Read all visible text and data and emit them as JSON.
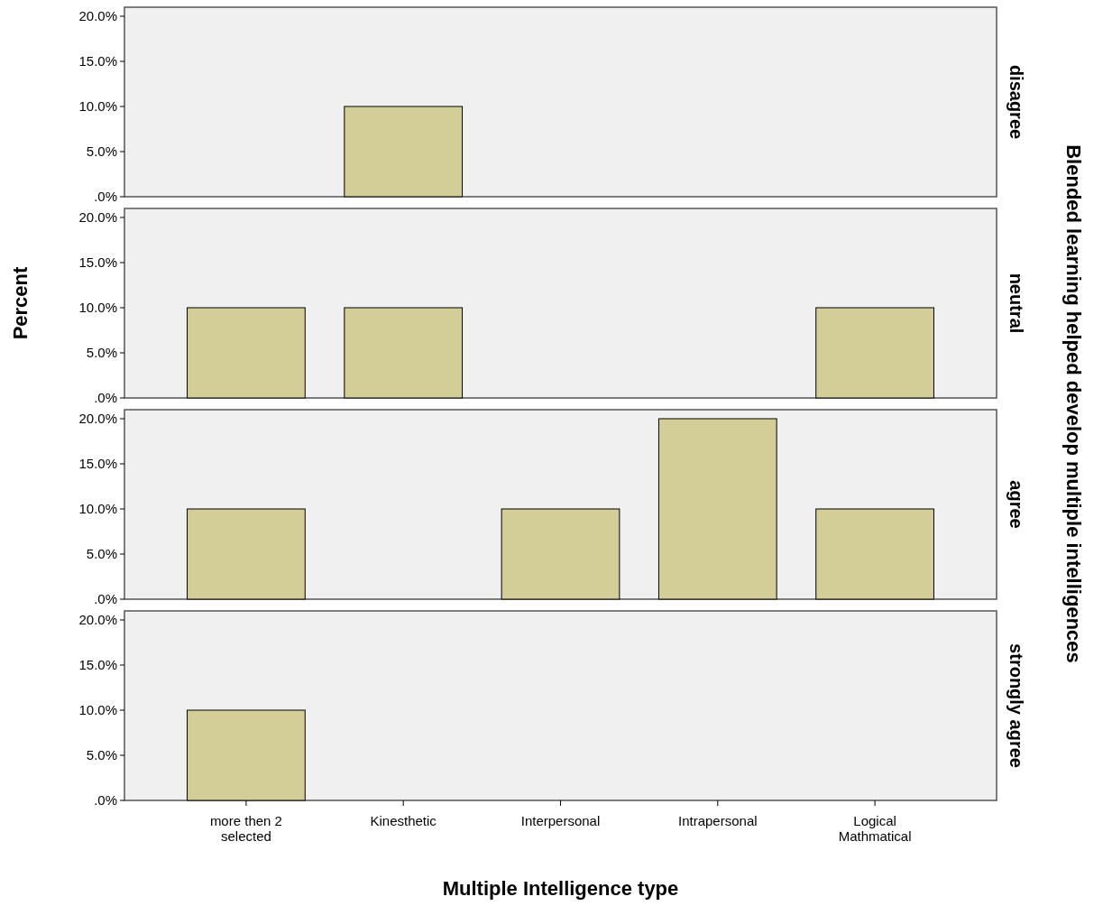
{
  "chart_data": [
    {
      "type": "bar",
      "categories": [
        "more then 2 selected",
        "Kinesthetic",
        "Interpersonal",
        "Intrapersonal",
        "Logical Mathmatical"
      ],
      "values": [
        0,
        10,
        0,
        0,
        0
      ],
      "color": "#d3ce97",
      "ylim": [
        0,
        21
      ],
      "yticks": [
        {
          "value": 0,
          "label": ".0%"
        },
        {
          "value": 5,
          "label": "5.0%"
        },
        {
          "value": 10,
          "label": "10.0%"
        },
        {
          "value": 15,
          "label": "15.0%"
        },
        {
          "value": 20,
          "label": "20.0%"
        }
      ],
      "tick_labels": "y",
      "y2label": "disagree",
      "annotations": [
        "Blended learning helped develop multiple intelligences"
      ]
    },
    {
      "type": "bar",
      "categories": [
        "more then 2 selected",
        "Kinesthetic",
        "Interpersonal",
        "Intrapersonal",
        "Logical Mathmatical"
      ],
      "values": [
        10,
        10,
        0,
        0,
        10
      ],
      "color": "#d3ce97",
      "ylim": [
        0,
        21
      ],
      "yticks": [
        {
          "value": 0,
          "label": ".0%"
        },
        {
          "value": 5,
          "label": "5.0%"
        },
        {
          "value": 10,
          "label": "10.0%"
        },
        {
          "value": 15,
          "label": "15.0%"
        },
        {
          "value": 20,
          "label": "20.0%"
        }
      ],
      "tick_labels": "y",
      "y2label": "neutral",
      "ylabel": "Percent"
    },
    {
      "type": "bar",
      "categories": [
        "more then 2 selected",
        "Kinesthetic",
        "Interpersonal",
        "Intrapersonal",
        "Logical Mathmatical"
      ],
      "values": [
        10,
        0,
        10,
        20,
        10
      ],
      "color": "#d3ce97",
      "ylim": [
        0,
        21
      ],
      "yticks": [
        {
          "value": 0,
          "label": ".0%"
        },
        {
          "value": 5,
          "label": "5.0%"
        },
        {
          "value": 10,
          "label": "10.0%"
        },
        {
          "value": 15,
          "label": "15.0%"
        },
        {
          "value": 20,
          "label": "20.0%"
        }
      ],
      "tick_labels": "y",
      "y2label": "agree"
    },
    {
      "type": "bar",
      "categories": [
        "more then 2 selected",
        "Kinesthetic",
        "Interpersonal",
        "Intrapersonal",
        "Logical Mathmatical"
      ],
      "values": [
        10,
        0,
        0,
        0,
        0
      ],
      "color": "#d3ce97",
      "ylim": [
        0,
        21
      ],
      "yticks": [
        {
          "value": 0,
          "label": ".0%"
        },
        {
          "value": 5,
          "label": "5.0%"
        },
        {
          "value": 10,
          "label": "10.0%"
        },
        {
          "value": 15,
          "label": "15.0%"
        },
        {
          "value": 20,
          "label": "20.0%"
        }
      ],
      "y2label": "strongly agree",
      "xlabel": "Multiple Intelligence type"
    }
  ]
}
